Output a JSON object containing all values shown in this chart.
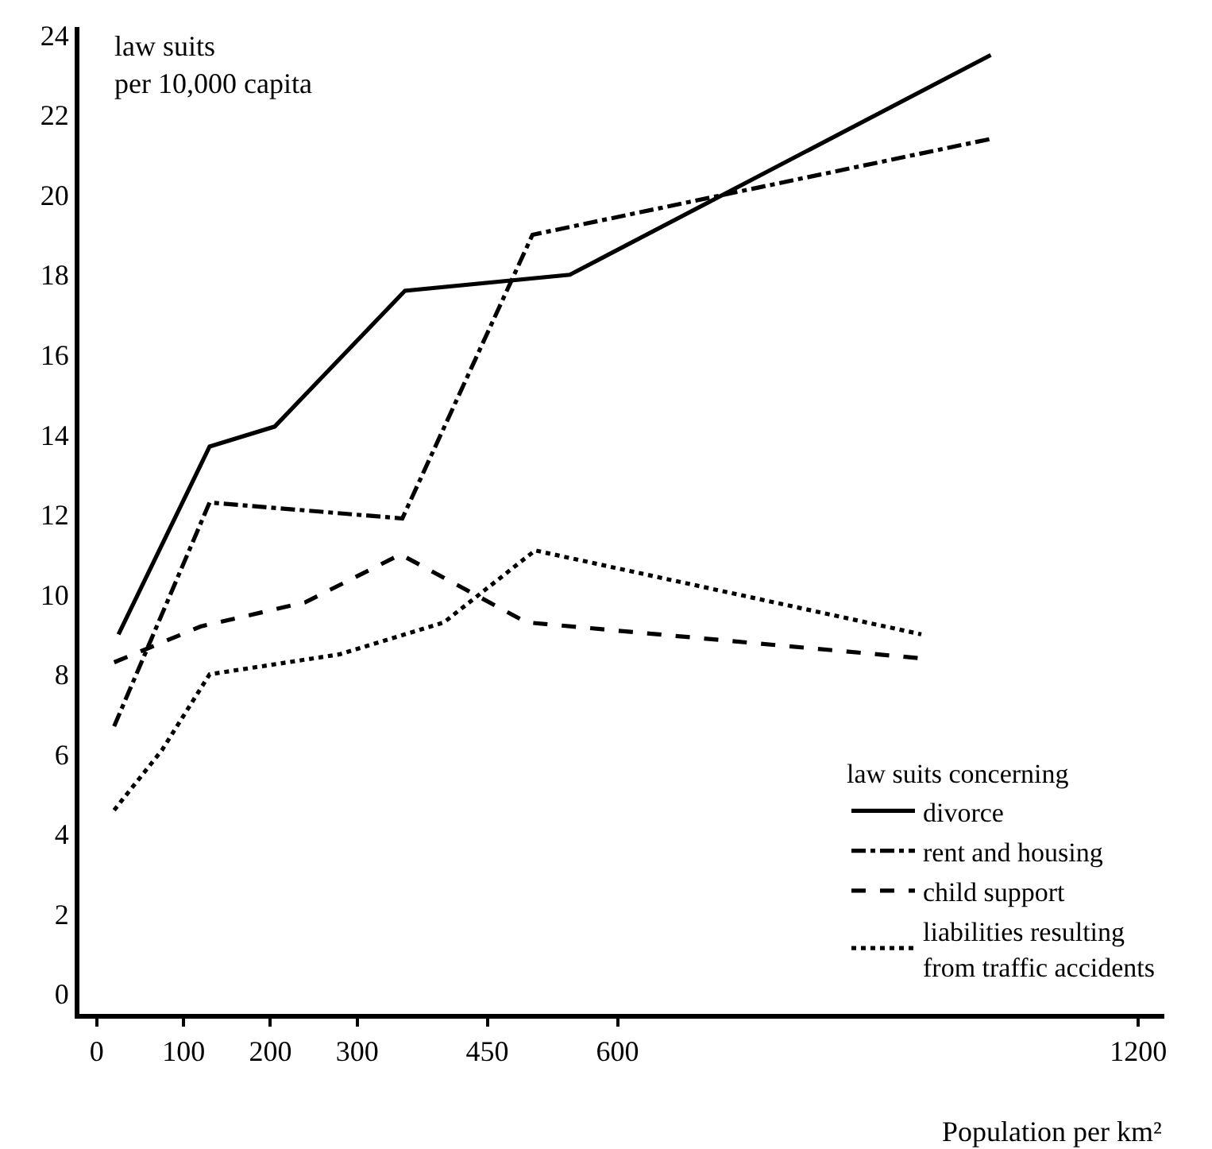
{
  "chart_data": {
    "type": "line",
    "xlabel": "Population per km²",
    "ylabel": "law suits\nper 10,000 capita",
    "legend_title": "law suits concerning",
    "xlim": [
      -20,
      1230
    ],
    "xticks": [
      0,
      100,
      200,
      300,
      450,
      600,
      1200
    ],
    "ylim": [
      -0.5,
      24.2
    ],
    "yticks": [
      0,
      2,
      4,
      6,
      8,
      10,
      12,
      14,
      16,
      18,
      20,
      22,
      24
    ],
    "grid": false,
    "legend": "bottom right",
    "marker": "none",
    "series": [
      {
        "name": "divorce",
        "color": "#000000",
        "line_style": "solid",
        "x": [
          25,
          130,
          205,
          355,
          545,
          1030
        ],
        "values": [
          9.0,
          13.7,
          14.2,
          17.6,
          18.0,
          23.5
        ]
      },
      {
        "name": "rent and housing",
        "color": "#000000",
        "line_style": "dashdot",
        "x": [
          20,
          130,
          352,
          502,
          1030
        ],
        "values": [
          6.7,
          12.3,
          11.9,
          19.0,
          21.4
        ]
      },
      {
        "name": "child support",
        "color": "#000000",
        "line_style": "dashed",
        "x": [
          20,
          120,
          240,
          350,
          495,
          950
        ],
        "values": [
          8.3,
          9.2,
          9.8,
          11.0,
          9.3,
          8.4
        ]
      },
      {
        "name": "liabilities resulting\nfrom traffic accidents",
        "color": "#000000",
        "line_style": "dotted",
        "x": [
          20,
          75,
          130,
          280,
          400,
          505,
          950
        ],
        "values": [
          4.6,
          6.1,
          8.0,
          8.5,
          9.3,
          11.1,
          9.0
        ]
      }
    ]
  }
}
